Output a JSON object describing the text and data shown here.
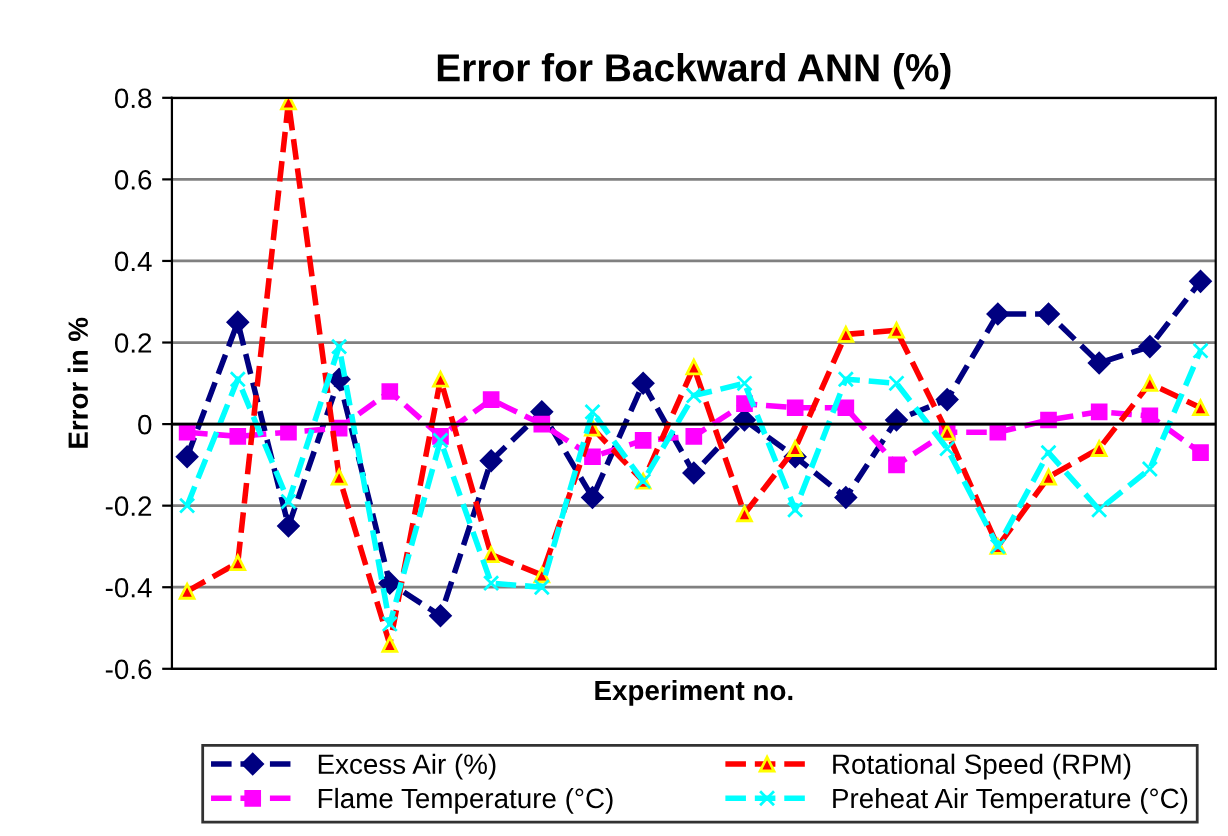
{
  "chart_data": {
    "type": "line",
    "title": "Error for Backward ANN (%)",
    "xlabel": "Experiment no.",
    "ylabel": "Error in %",
    "categories": [
      null,
      null,
      null,
      null,
      null,
      null,
      null,
      null,
      null,
      null,
      null,
      null,
      null,
      null,
      null,
      null,
      null,
      null,
      null,
      null,
      null
    ],
    "series": [
      {
        "name": "Excess Air (%)",
        "color": "#000080",
        "marker": "diamond",
        "line_style": "dashed",
        "values": [
          -0.08,
          0.25,
          -0.25,
          0.11,
          -0.39,
          -0.47,
          -0.09,
          0.03,
          -0.18,
          0.1,
          -0.12,
          0.01,
          -0.08,
          -0.18,
          0.01,
          0.06,
          0.27,
          0.27,
          0.15,
          0.19,
          0.35
        ]
      },
      {
        "name": "Flame Temperature (°C)",
        "color": "#ff00ff",
        "marker": "square",
        "line_style": "dashed",
        "values": [
          -0.02,
          -0.03,
          -0.02,
          -0.01,
          0.08,
          -0.03,
          0.06,
          0.0,
          -0.08,
          -0.04,
          -0.03,
          0.05,
          0.04,
          0.04,
          -0.1,
          -0.02,
          -0.02,
          0.01,
          0.03,
          0.02,
          -0.07
        ]
      },
      {
        "name": "Rotational Speed (RPM)",
        "color": "#ff0000",
        "marker": "triangle",
        "line_style": "dashed",
        "values": [
          -0.41,
          -0.34,
          0.79,
          -0.13,
          -0.54,
          0.11,
          -0.32,
          -0.37,
          -0.01,
          -0.14,
          0.14,
          -0.22,
          -0.06,
          0.22,
          0.23,
          -0.02,
          -0.3,
          -0.13,
          -0.06,
          0.1,
          0.04
        ]
      },
      {
        "name": "Preheat Air Temperature (°C)",
        "color": "#00ffff",
        "marker": "cross",
        "line_style": "dashed",
        "values": [
          -0.2,
          0.11,
          -0.19,
          0.19,
          -0.49,
          -0.04,
          -0.39,
          -0.4,
          0.03,
          -0.14,
          0.07,
          0.1,
          -0.21,
          0.11,
          0.1,
          -0.06,
          -0.3,
          -0.07,
          -0.21,
          -0.11,
          0.18
        ]
      }
    ],
    "ylim": [
      -0.6,
      0.8
    ],
    "yticks": [
      -0.6,
      -0.4,
      -0.2,
      0,
      0.2,
      0.4,
      0.6,
      0.8
    ],
    "grid": "y",
    "legend": "bottom",
    "tick_labels": "y"
  }
}
